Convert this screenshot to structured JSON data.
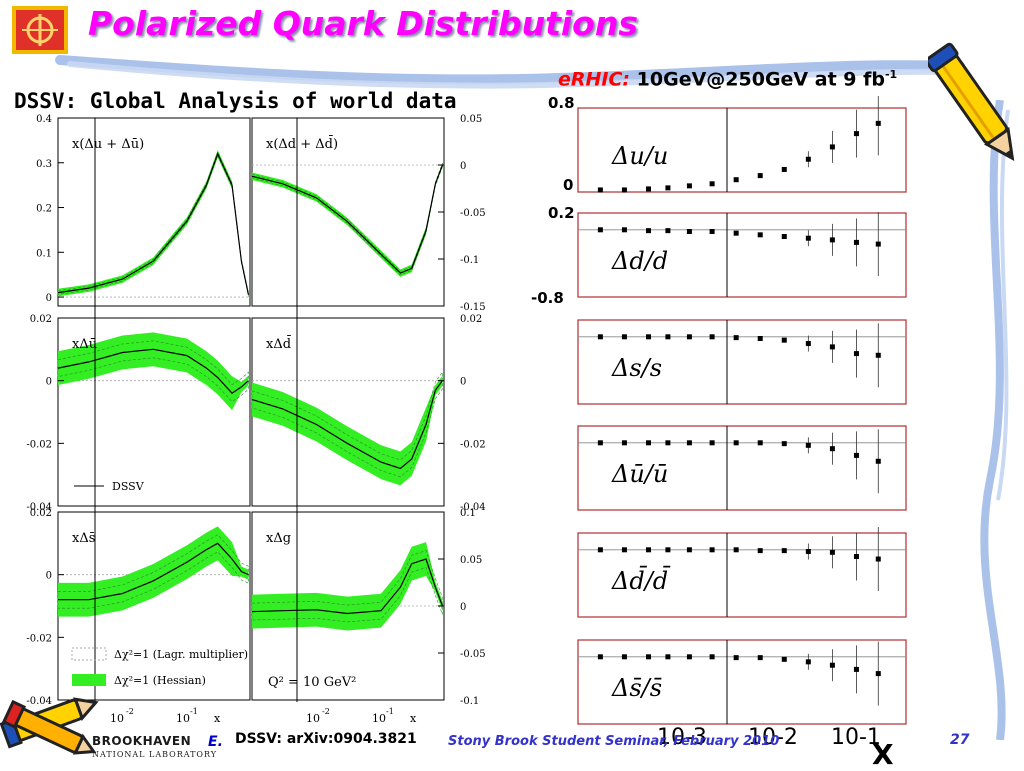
{
  "slide": {
    "title": "Polarized Quark Distributions",
    "subtitle": "DSSV: Global Analysis of world data",
    "erhic_label": "eRHIC:",
    "erhic_value": "10GeV@250GeV  at 9 fb",
    "erhic_exponent": "-1",
    "right_axis": {
      "y_top": "0.8",
      "y_mid0": "0",
      "y_mid1": "0.2",
      "y_bot": "-0.8",
      "x_label": "X"
    },
    "footer": {
      "e_marker": "E.",
      "reference": "DSSV: arXiv:0904.3821",
      "seminar": "Stony Brook Student Seminar, February 2010",
      "page": "27",
      "lab_name": "BROOKHAVEN",
      "lab_sub": "NATIONAL LABORATORY"
    }
  },
  "chart_data": [
    {
      "type": "line",
      "panels": [
        {
          "label": "x(Δu + Δū)",
          "yticks": [
            "0.4",
            "0.3",
            "0.2",
            "0.1",
            "0"
          ],
          "ylim": [
            -0.02,
            0.4
          ],
          "x": [
            0.001,
            0.003,
            0.01,
            0.03,
            0.1,
            0.2,
            0.3,
            0.5,
            0.7,
            0.9
          ],
          "y": [
            0.01,
            0.02,
            0.04,
            0.08,
            0.17,
            0.25,
            0.32,
            0.25,
            0.08,
            0.005
          ]
        },
        {
          "label": "x(Δd + Δd̄)",
          "yticks": [
            "0.05",
            "0",
            "-0.05",
            "-0.1",
            "-0.15"
          ],
          "ylim": [
            -0.15,
            0.05
          ],
          "x": [
            0.001,
            0.003,
            0.01,
            0.03,
            0.1,
            0.2,
            0.3,
            0.5,
            0.7,
            0.9
          ],
          "y": [
            -0.012,
            -0.02,
            -0.035,
            -0.06,
            -0.095,
            -0.115,
            -0.11,
            -0.07,
            -0.02,
            0
          ]
        },
        {
          "label": "xΔū",
          "yticks": [
            "0.02",
            "0",
            "-0.02",
            "-0.04"
          ],
          "ylim": [
            -0.04,
            0.02
          ],
          "x": [
            0.001,
            0.003,
            0.01,
            0.03,
            0.1,
            0.2,
            0.3,
            0.5,
            0.7,
            0.9
          ],
          "y": [
            0.004,
            0.006,
            0.009,
            0.01,
            0.008,
            0.004,
            0.001,
            -0.004,
            -0.002,
            0
          ]
        },
        {
          "label": "xΔd̄",
          "yticks": [
            "0.02",
            "0",
            "-0.02",
            "-0.04"
          ],
          "ylim": [
            -0.04,
            0.02
          ],
          "x": [
            0.001,
            0.003,
            0.01,
            0.03,
            0.1,
            0.2,
            0.3,
            0.5,
            0.7,
            0.9
          ],
          "y": [
            -0.006,
            -0.009,
            -0.014,
            -0.02,
            -0.026,
            -0.028,
            -0.025,
            -0.014,
            -0.003,
            0
          ]
        },
        {
          "label": "xΔs̄",
          "yticks": [
            "0.02",
            "0",
            "-0.02",
            "-0.04"
          ],
          "ylim": [
            -0.04,
            0.02
          ],
          "x": [
            0.001,
            0.003,
            0.01,
            0.03,
            0.1,
            0.2,
            0.3,
            0.5,
            0.7,
            0.9
          ],
          "y": [
            -0.008,
            -0.008,
            -0.006,
            -0.002,
            0.004,
            0.008,
            0.01,
            0.005,
            0.001,
            0
          ]
        },
        {
          "label": "xΔg",
          "yticks": [
            "0.1",
            "0.05",
            "0",
            "-0.05",
            "-0.1"
          ],
          "ylim": [
            -0.1,
            0.1
          ],
          "x": [
            0.001,
            0.003,
            0.01,
            0.03,
            0.1,
            0.2,
            0.3,
            0.5,
            0.7,
            0.9
          ],
          "y": [
            -0.006,
            -0.005,
            -0.004,
            -0.008,
            -0.005,
            0.02,
            0.045,
            0.05,
            0.02,
            0
          ]
        }
      ],
      "xticks": [
        "10",
        "-2",
        "10",
        "-1",
        "x"
      ],
      "legend": [
        "DSSV",
        "Δχ²=1 (Lagr. multiplier)",
        "Δχ²=1 (Hessian)"
      ],
      "annotation": "Q² = 10 GeV²",
      "colors": {
        "band": "#33ee22",
        "hatch": "#2a8a2a",
        "curve": "#000000"
      }
    },
    {
      "type": "scatter",
      "xticks": [
        "10-3",
        "10-2",
        "10-1"
      ],
      "panels": [
        {
          "label": "Δu/u",
          "x": [
            0.0001,
            0.0002,
            0.0004,
            0.0007,
            0.0013,
            0.0025,
            0.005,
            0.01,
            0.02,
            0.04,
            0.08,
            0.16,
            0.3
          ],
          "y": [
            0,
            0,
            0.01,
            0.02,
            0.04,
            0.06,
            0.1,
            0.14,
            0.2,
            0.3,
            0.42,
            0.55,
            0.65
          ]
        },
        {
          "label": "Δd/d",
          "x": [
            0.0001,
            0.0002,
            0.0004,
            0.0007,
            0.0013,
            0.0025,
            0.005,
            0.01,
            0.02,
            0.04,
            0.08,
            0.16,
            0.3
          ],
          "y": [
            0,
            0,
            -0.01,
            -0.01,
            -0.02,
            -0.02,
            -0.04,
            -0.06,
            -0.08,
            -0.1,
            -0.12,
            -0.15,
            -0.17
          ]
        },
        {
          "label": "Δs/s",
          "x": [
            0.0001,
            0.0002,
            0.0004,
            0.0007,
            0.0013,
            0.0025,
            0.005,
            0.01,
            0.02,
            0.04,
            0.08,
            0.16,
            0.3
          ],
          "y": [
            0,
            0,
            0,
            0,
            0,
            0,
            -0.01,
            -0.02,
            -0.04,
            -0.08,
            -0.12,
            -0.2,
            -0.22
          ]
        },
        {
          "label": "Δū/ū",
          "x": [
            0.0001,
            0.0002,
            0.0004,
            0.0007,
            0.0013,
            0.0025,
            0.005,
            0.01,
            0.02,
            0.04,
            0.08,
            0.16,
            0.3
          ],
          "y": [
            0,
            0,
            0,
            0,
            0,
            0,
            0,
            0,
            -0.01,
            -0.03,
            -0.07,
            -0.15,
            -0.22
          ]
        },
        {
          "label": "Δd̄/d̄",
          "x": [
            0.0001,
            0.0002,
            0.0004,
            0.0007,
            0.0013,
            0.0025,
            0.005,
            0.01,
            0.02,
            0.04,
            0.08,
            0.16,
            0.3
          ],
          "y": [
            0,
            0,
            0,
            0,
            0,
            0,
            0,
            -0.01,
            -0.01,
            -0.02,
            -0.03,
            -0.08,
            -0.11
          ]
        },
        {
          "label": "Δs̄/s̄",
          "x": [
            0.0001,
            0.0002,
            0.0004,
            0.0007,
            0.0013,
            0.0025,
            0.005,
            0.01,
            0.02,
            0.04,
            0.08,
            0.16,
            0.3
          ],
          "y": [
            0,
            0,
            0,
            0,
            0,
            0,
            -0.01,
            -0.01,
            -0.03,
            -0.06,
            -0.1,
            -0.15,
            -0.2
          ]
        }
      ]
    }
  ]
}
